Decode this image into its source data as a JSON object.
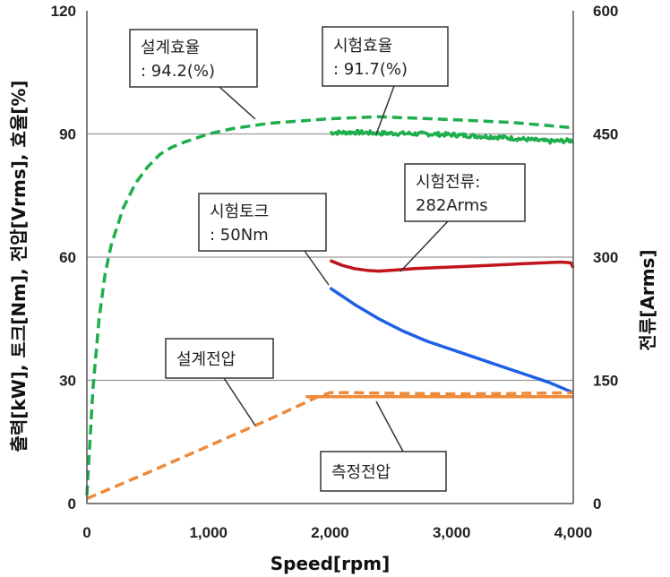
{
  "chart_data": {
    "type": "line",
    "xlabel": "Speed[rpm]",
    "ylabel_left": "출력[kW], 토크[Nm], 전압[Vrms], 효율[%]",
    "ylabel_right": "전류[Arms]",
    "xlim": [
      0,
      4000
    ],
    "ylim_left": [
      0,
      120
    ],
    "ylim_right": [
      0,
      600
    ],
    "x_ticks": [
      "0",
      "1,000",
      "2,000",
      "3,000",
      "4,000"
    ],
    "y_left_ticks": [
      "0",
      "30",
      "60",
      "90",
      "120"
    ],
    "y_right_ticks": [
      "0",
      "150",
      "300",
      "450",
      "600"
    ],
    "gridlines_left": [
      30,
      60,
      90
    ],
    "colors": {
      "efficiency": "#1fae4c",
      "current": "#c0141c",
      "torque": "#1f5fe6",
      "voltage": "#ee8a3a",
      "grid": "#9a9a9a"
    },
    "series": [
      {
        "key": "design_efficiency",
        "style": "dashed",
        "color_key": "efficiency",
        "x": [
          0,
          50,
          100,
          150,
          200,
          300,
          400,
          500,
          600,
          700,
          800,
          1000,
          1200,
          1500,
          2000,
          2400,
          3000,
          3500,
          4000
        ],
        "y": [
          2,
          28,
          45,
          56,
          63,
          72,
          78,
          82,
          85,
          86.8,
          88,
          90,
          91.3,
          92.6,
          93.7,
          94.2,
          93.5,
          92.8,
          91.5
        ]
      },
      {
        "key": "test_efficiency",
        "style": "noisy",
        "color_key": "efficiency",
        "x": [
          2000,
          2200,
          2400,
          2600,
          2800,
          3000,
          3200,
          3400,
          3600,
          3800,
          4000
        ],
        "y": [
          90.3,
          90.4,
          90.2,
          90.1,
          90,
          89.8,
          89.5,
          89.2,
          88.7,
          88.2,
          88.4
        ]
      },
      {
        "key": "test_current",
        "style": "solid",
        "color_key": "current",
        "axis": "right",
        "x": [
          2000,
          2100,
          2200,
          2300,
          2400,
          2500,
          2700,
          3000,
          3300,
          3600,
          3900,
          3980,
          4000
        ],
        "y": [
          296,
          290,
          286,
          284,
          283,
          284,
          286,
          288,
          290,
          292,
          294,
          293,
          287
        ]
      },
      {
        "key": "test_torque",
        "style": "solid",
        "color_key": "torque",
        "x": [
          2000,
          2200,
          2400,
          2600,
          2800,
          3000,
          3200,
          3400,
          3600,
          3800,
          4000
        ],
        "y": [
          52.5,
          48.5,
          45,
          42,
          39.5,
          37.5,
          35.5,
          33.5,
          31.5,
          29.5,
          27
        ]
      },
      {
        "key": "design_voltage",
        "style": "dashed",
        "color_key": "voltage",
        "x": [
          0,
          500,
          1000,
          1500,
          1900,
          2000,
          2200,
          2600,
          3000,
          3500,
          4000
        ],
        "y": [
          1.2,
          7.5,
          14,
          20.5,
          26,
          27,
          27,
          26.8,
          26.7,
          26.8,
          27
        ]
      },
      {
        "key": "measured_voltage",
        "style": "solid",
        "color_key": "voltage",
        "x": [
          1800,
          2200,
          2600,
          3000,
          3400,
          3800,
          4000
        ],
        "y": [
          26,
          26,
          26,
          26,
          26,
          26,
          26
        ]
      }
    ],
    "annotations": [
      {
        "key": "design_efficiency_box",
        "lines": [
          "설계효율",
          ": 94.2(%)"
        ]
      },
      {
        "key": "test_efficiency_box",
        "lines": [
          "시험효율",
          ": 91.7(%)"
        ]
      },
      {
        "key": "test_current_box",
        "lines": [
          "시험전류:",
          "282Arms"
        ]
      },
      {
        "key": "test_torque_box",
        "lines": [
          "시험토크",
          ": 50Nm"
        ]
      },
      {
        "key": "design_voltage_box",
        "lines": [
          "설계전압"
        ]
      },
      {
        "key": "measured_voltage_box",
        "lines": [
          "측정전압"
        ]
      }
    ]
  }
}
